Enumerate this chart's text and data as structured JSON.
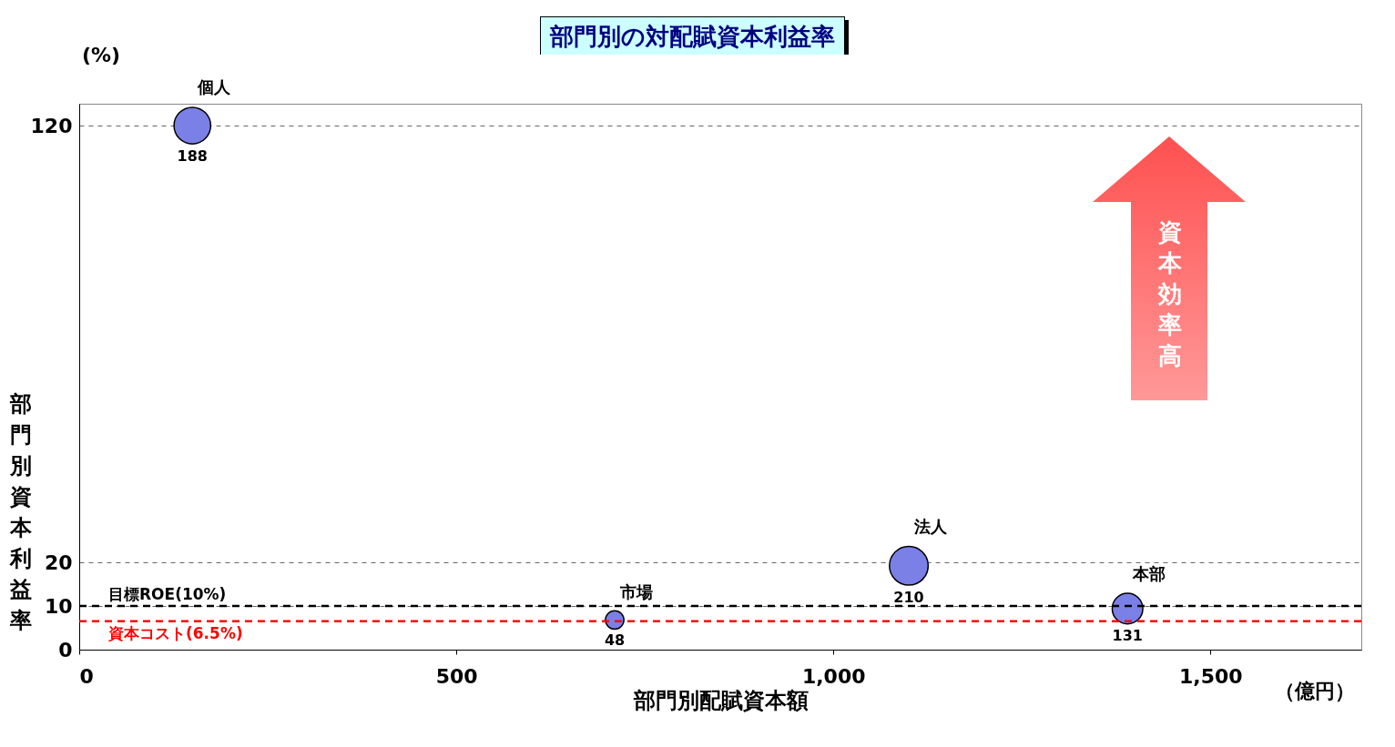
{
  "chart_data": {
    "type": "bubble",
    "title": "部門別の対配賦資本利益率",
    "xlabel": "部門別配賦資本額",
    "ylabel": "部門別資本利益率",
    "xlim": [
      0,
      1700
    ],
    "xticks": [
      0,
      500,
      {
        "value": 1000,
        "label": "1,000"
      },
      {
        "value": 1500,
        "label": "1,500"
      }
    ],
    "ylim": [
      0,
      125
    ],
    "yticks": [
      0,
      10,
      20,
      120
    ],
    "grid": "y",
    "marker": "circle",
    "annotations": [
      "(%)",
      "（億円）",
      "資本効率高"
    ],
    "ref_lines": [
      {
        "axis": "y",
        "value": 10,
        "label": "目標ROE(10%)",
        "color": "#000000",
        "line_style": "dashed"
      },
      {
        "axis": "y",
        "value": 6.5,
        "label": "資本コスト(6.5%)",
        "color": "#ff0000",
        "line_style": "dashed"
      }
    ],
    "series": [
      {
        "name": "個人",
        "color": "#7b80e6",
        "x": [
          150
        ],
        "values": [
          120
        ],
        "sizes": [
          188
        ],
        "value_labels": [
          "188"
        ]
      },
      {
        "name": "法人",
        "color": "#7b80e6",
        "x": [
          1100
        ],
        "values": [
          19.2
        ],
        "sizes": [
          210
        ],
        "value_labels": [
          "210"
        ]
      },
      {
        "name": "市場",
        "color": "#7b80e6",
        "x": [
          710
        ],
        "values": [
          6.8
        ],
        "sizes": [
          48
        ],
        "value_labels": [
          "48"
        ]
      },
      {
        "name": "本部",
        "color": "#7b80e6",
        "x": [
          1390
        ],
        "values": [
          9.4
        ],
        "sizes": [
          131
        ],
        "value_labels": [
          "131"
        ]
      }
    ]
  }
}
